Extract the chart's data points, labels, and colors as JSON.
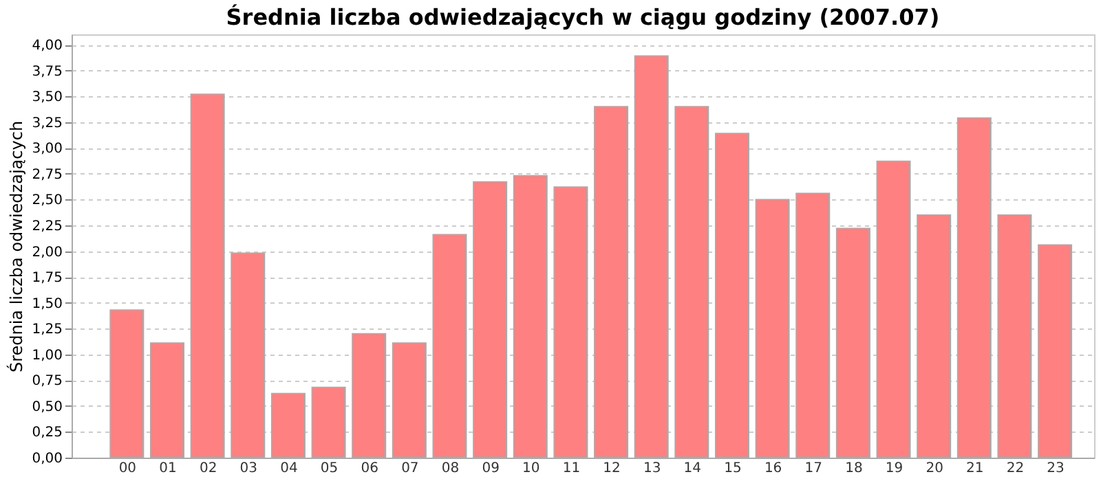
{
  "chart_data": {
    "type": "bar",
    "title": "Średnia liczba odwiedzających w ciągu godziny (2007.07)",
    "ylabel": "Średnia liczba odwiedzających",
    "categories": [
      "00",
      "01",
      "02",
      "03",
      "04",
      "05",
      "06",
      "07",
      "08",
      "09",
      "10",
      "11",
      "12",
      "13",
      "14",
      "15",
      "16",
      "17",
      "18",
      "19",
      "20",
      "21",
      "22",
      "23"
    ],
    "values": [
      1.43,
      1.11,
      3.52,
      1.98,
      0.62,
      0.68,
      1.2,
      1.11,
      2.16,
      2.67,
      2.73,
      2.62,
      3.4,
      3.89,
      3.4,
      3.14,
      2.5,
      2.56,
      2.22,
      2.87,
      2.35,
      3.29,
      2.35,
      2.06
    ],
    "color": "#ff8080",
    "ylim": [
      0,
      4.1
    ],
    "yticks": [
      {
        "value": 0,
        "label": "0,00"
      },
      {
        "value": 0.25,
        "label": "0,25"
      },
      {
        "value": 0.5,
        "label": "0,50"
      },
      {
        "value": 0.75,
        "label": "0,75"
      },
      {
        "value": 1,
        "label": "1,00"
      },
      {
        "value": 1.25,
        "label": "1,25"
      },
      {
        "value": 1.5,
        "label": "1,50"
      },
      {
        "value": 1.75,
        "label": "1,75"
      },
      {
        "value": 2,
        "label": "2,00"
      },
      {
        "value": 2.25,
        "label": "2,25"
      },
      {
        "value": 2.5,
        "label": "2,50"
      },
      {
        "value": 2.75,
        "label": "2,75"
      },
      {
        "value": 3,
        "label": "3,00"
      },
      {
        "value": 3.25,
        "label": "3,25"
      },
      {
        "value": 3.5,
        "label": "3,50"
      },
      {
        "value": 3.75,
        "label": "3,75"
      },
      {
        "value": 4,
        "label": "4,00"
      }
    ],
    "grid": "y"
  }
}
